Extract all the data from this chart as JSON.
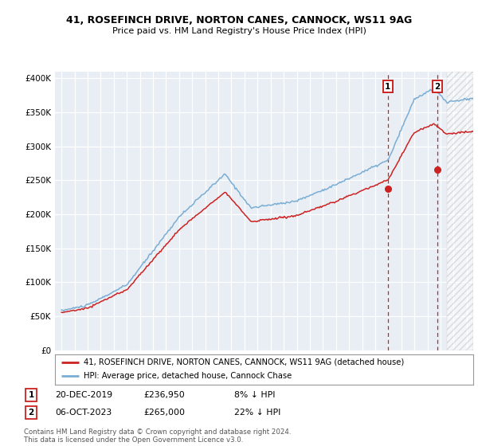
{
  "title1": "41, ROSEFINCH DRIVE, NORTON CANES, CANNOCK, WS11 9AG",
  "title2": "Price paid vs. HM Land Registry's House Price Index (HPI)",
  "ylabel_ticks": [
    "£0",
    "£50K",
    "£100K",
    "£150K",
    "£200K",
    "£250K",
    "£300K",
    "£350K",
    "£400K"
  ],
  "ytick_values": [
    0,
    50000,
    100000,
    150000,
    200000,
    250000,
    300000,
    350000,
    400000
  ],
  "ylim": [
    0,
    410000
  ],
  "xlim_start": 1994.5,
  "xlim_end": 2026.5,
  "hpi_color": "#7aadd4",
  "price_color": "#cc2222",
  "sale1_x": 2019.97,
  "sale1_y": 236950,
  "sale2_x": 2023.76,
  "sale2_y": 265000,
  "future_start": 2024.5,
  "legend_line1": "41, ROSEFINCH DRIVE, NORTON CANES, CANNOCK, WS11 9AG (detached house)",
  "legend_line2": "HPI: Average price, detached house, Cannock Chase",
  "note1_date": "20-DEC-2019",
  "note1_price": "£236,950",
  "note1_pct": "8% ↓ HPI",
  "note2_date": "06-OCT-2023",
  "note2_price": "£265,000",
  "note2_pct": "22% ↓ HPI",
  "footer": "Contains HM Land Registry data © Crown copyright and database right 2024.\nThis data is licensed under the Open Government Licence v3.0.",
  "bg_color": "#e8eef4"
}
